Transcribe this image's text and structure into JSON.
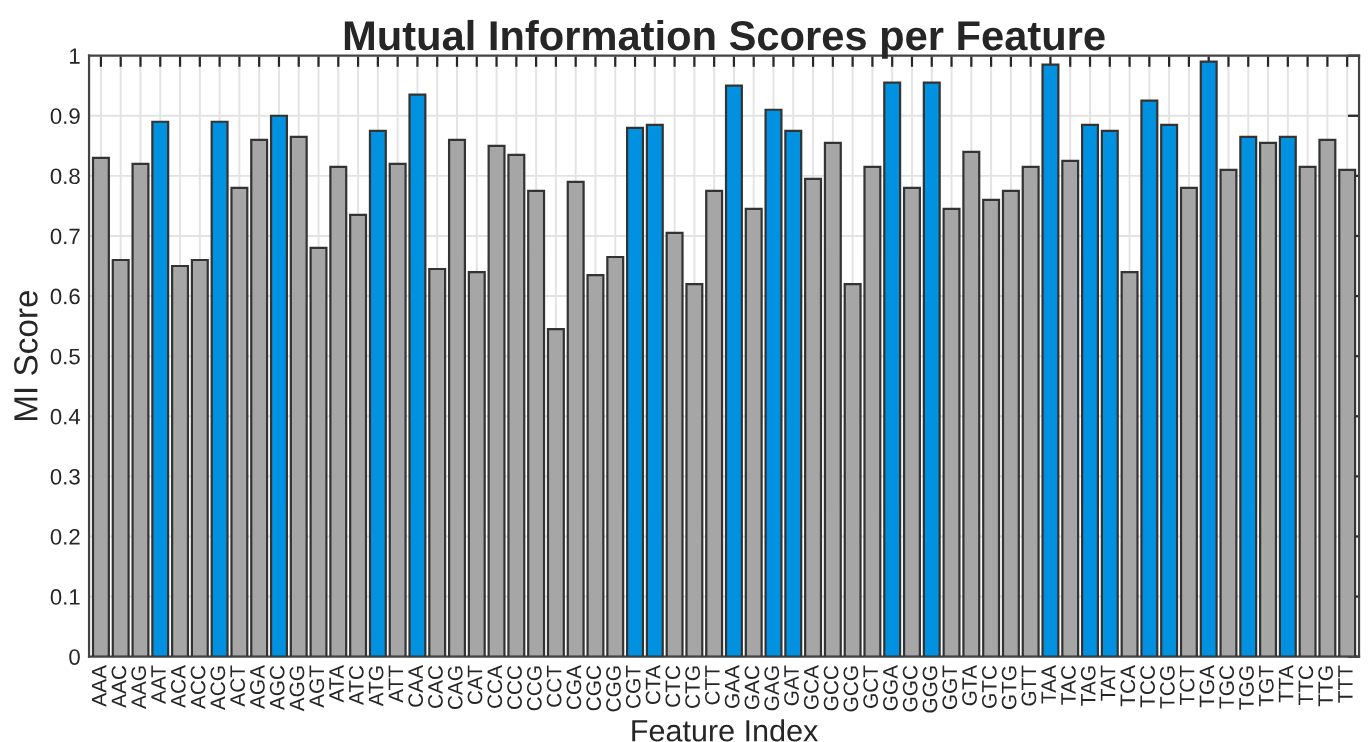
{
  "chart_data": {
    "type": "bar",
    "title": "Mutual Information Scores per Feature",
    "xlabel": "Feature Index",
    "ylabel": "MI Score",
    "categories": [
      "AAA",
      "AAC",
      "AAG",
      "AAT",
      "ACA",
      "ACC",
      "ACG",
      "ACT",
      "AGA",
      "AGC",
      "AGG",
      "AGT",
      "ATA",
      "ATC",
      "ATG",
      "ATT",
      "CAA",
      "CAC",
      "CAG",
      "CAT",
      "CCA",
      "CCC",
      "CCG",
      "CCT",
      "CGA",
      "CGC",
      "CGG",
      "CGT",
      "CTA",
      "CTC",
      "CTG",
      "CTT",
      "GAA",
      "GAC",
      "GAG",
      "GAT",
      "GCA",
      "GCC",
      "GCG",
      "GCT",
      "GGA",
      "GGC",
      "GGG",
      "GGT",
      "GTA",
      "GTC",
      "GTG",
      "GTT",
      "TAA",
      "TAC",
      "TAG",
      "TAT",
      "TCA",
      "TCC",
      "TCG",
      "TCT",
      "TGA",
      "TGC",
      "TGG",
      "TGT",
      "TTA",
      "TTC",
      "TTG",
      "TTT"
    ],
    "values": [
      0.83,
      0.66,
      0.82,
      0.89,
      0.65,
      0.66,
      0.89,
      0.78,
      0.86,
      0.9,
      0.865,
      0.68,
      0.815,
      0.735,
      0.875,
      0.82,
      0.935,
      0.645,
      0.86,
      0.64,
      0.85,
      0.835,
      0.775,
      0.545,
      0.79,
      0.635,
      0.665,
      0.88,
      0.885,
      0.705,
      0.62,
      0.775,
      0.95,
      0.745,
      0.91,
      0.875,
      0.795,
      0.855,
      0.62,
      0.815,
      0.955,
      0.78,
      0.955,
      0.745,
      0.84,
      0.76,
      0.775,
      0.815,
      0.985,
      0.825,
      0.885,
      0.875,
      0.64,
      0.925,
      0.885,
      0.78,
      0.99,
      0.81,
      0.865,
      0.855,
      0.865,
      0.815,
      0.86,
      0.81
    ],
    "colors": [
      "#a6a6a6",
      "#a6a6a6",
      "#a6a6a6",
      "#0092e0",
      "#a6a6a6",
      "#a6a6a6",
      "#0092e0",
      "#a6a6a6",
      "#a6a6a6",
      "#0092e0",
      "#a6a6a6",
      "#a6a6a6",
      "#a6a6a6",
      "#a6a6a6",
      "#0092e0",
      "#a6a6a6",
      "#0092e0",
      "#a6a6a6",
      "#a6a6a6",
      "#a6a6a6",
      "#a6a6a6",
      "#a6a6a6",
      "#a6a6a6",
      "#a6a6a6",
      "#a6a6a6",
      "#a6a6a6",
      "#a6a6a6",
      "#0092e0",
      "#0092e0",
      "#a6a6a6",
      "#a6a6a6",
      "#a6a6a6",
      "#0092e0",
      "#a6a6a6",
      "#0092e0",
      "#0092e0",
      "#a6a6a6",
      "#a6a6a6",
      "#a6a6a6",
      "#a6a6a6",
      "#0092e0",
      "#a6a6a6",
      "#0092e0",
      "#a6a6a6",
      "#a6a6a6",
      "#a6a6a6",
      "#a6a6a6",
      "#a6a6a6",
      "#0092e0",
      "#a6a6a6",
      "#0092e0",
      "#0092e0",
      "#a6a6a6",
      "#0092e0",
      "#0092e0",
      "#a6a6a6",
      "#0092e0",
      "#a6a6a6",
      "#0092e0",
      "#a6a6a6",
      "#0092e0",
      "#a6a6a6",
      "#a6a6a6",
      "#a6a6a6"
    ],
    "ylim": [
      0,
      1
    ],
    "yticks": [
      0,
      0.1,
      0.2,
      0.3,
      0.4,
      0.5,
      0.6,
      0.7,
      0.8,
      0.9,
      1
    ],
    "grid": true
  }
}
